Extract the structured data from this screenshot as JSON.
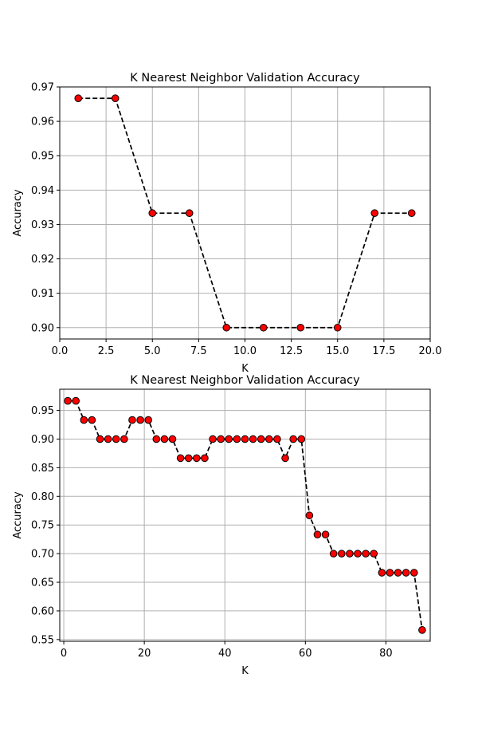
{
  "chart_data": [
    {
      "type": "line",
      "title": "K Nearest Neighbor Validation Accuracy",
      "xlabel": "K",
      "ylabel": "Accuracy",
      "xlim": [
        0,
        20
      ],
      "ylim": [
        0.8967,
        0.97
      ],
      "xticks": [
        0,
        2.5,
        5,
        7.5,
        10,
        12.5,
        15,
        17.5,
        20
      ],
      "xtick_labels": [
        "0.0",
        "2.5",
        "5.0",
        "7.5",
        "10.0",
        "12.5",
        "15.0",
        "17.5",
        "20.0"
      ],
      "yticks": [
        0.9,
        0.91,
        0.92,
        0.93,
        0.94,
        0.95,
        0.96,
        0.97
      ],
      "ytick_labels": [
        "0.90",
        "0.91",
        "0.92",
        "0.93",
        "0.94",
        "0.95",
        "0.96",
        "0.97"
      ],
      "grid": true,
      "line_style": "dashed",
      "line_color": "#000000",
      "marker_color": "#ff0000",
      "x": [
        1,
        3,
        5,
        7,
        9,
        11,
        13,
        15,
        17,
        19
      ],
      "y": [
        0.9667,
        0.9667,
        0.9333,
        0.9333,
        0.9,
        0.9,
        0.9,
        0.9,
        0.9333,
        0.9333
      ]
    },
    {
      "type": "line",
      "title": "K Nearest Neighbor Validation Accuracy",
      "xlabel": "K",
      "ylabel": "Accuracy",
      "xlim": [
        -1,
        91
      ],
      "ylim": [
        0.547,
        0.987
      ],
      "xticks": [
        0,
        20,
        40,
        60,
        80
      ],
      "xtick_labels": [
        "0",
        "20",
        "40",
        "60",
        "80"
      ],
      "yticks": [
        0.55,
        0.6,
        0.65,
        0.7,
        0.75,
        0.8,
        0.85,
        0.9,
        0.95
      ],
      "ytick_labels": [
        "0.55",
        "0.60",
        "0.65",
        "0.70",
        "0.75",
        "0.80",
        "0.85",
        "0.90",
        "0.95"
      ],
      "grid": true,
      "line_style": "dashed",
      "line_color": "#000000",
      "marker_color": "#ff0000",
      "x": [
        1,
        3,
        5,
        7,
        9,
        11,
        13,
        15,
        17,
        19,
        21,
        23,
        25,
        27,
        29,
        31,
        33,
        35,
        37,
        39,
        41,
        43,
        45,
        47,
        49,
        51,
        53,
        55,
        57,
        59,
        61,
        63,
        65,
        67,
        69,
        71,
        73,
        75,
        77,
        79,
        81,
        83,
        85,
        87,
        89
      ],
      "y": [
        0.9667,
        0.9667,
        0.9333,
        0.9333,
        0.9,
        0.9,
        0.9,
        0.9,
        0.9333,
        0.9333,
        0.9333,
        0.9,
        0.9,
        0.9,
        0.8667,
        0.8667,
        0.8667,
        0.8667,
        0.9,
        0.9,
        0.9,
        0.9,
        0.9,
        0.9,
        0.9,
        0.9,
        0.9,
        0.8667,
        0.9,
        0.9,
        0.7667,
        0.7333,
        0.7333,
        0.7,
        0.7,
        0.7,
        0.7,
        0.7,
        0.7,
        0.6667,
        0.6667,
        0.6667,
        0.6667,
        0.6667,
        0.5667
      ]
    }
  ]
}
